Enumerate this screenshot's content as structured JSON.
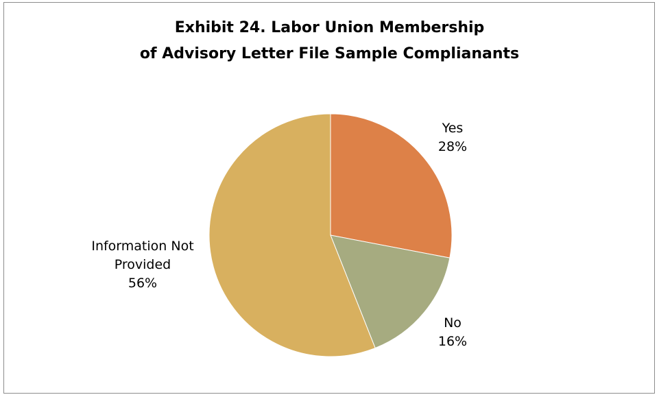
{
  "chart_data": {
    "type": "pie",
    "title_lines": [
      "Exhibit 24. Labor Union Membership",
      "of Advisory Letter File Sample Complianants"
    ],
    "slices": [
      {
        "name": "Yes",
        "label_lines": [
          "Yes"
        ],
        "percent_label": "28%",
        "value": 28,
        "color": "#dd8148"
      },
      {
        "name": "No",
        "label_lines": [
          "No"
        ],
        "percent_label": "16%",
        "value": 16,
        "color": "#a6ab80"
      },
      {
        "name": "Information Not Provided",
        "label_lines": [
          "Information Not",
          "Provided"
        ],
        "percent_label": "56%",
        "value": 56,
        "color": "#d8b05f"
      }
    ],
    "start_angle_deg": 0,
    "direction": "clockwise",
    "legend": "none",
    "data_labels": "outside"
  }
}
